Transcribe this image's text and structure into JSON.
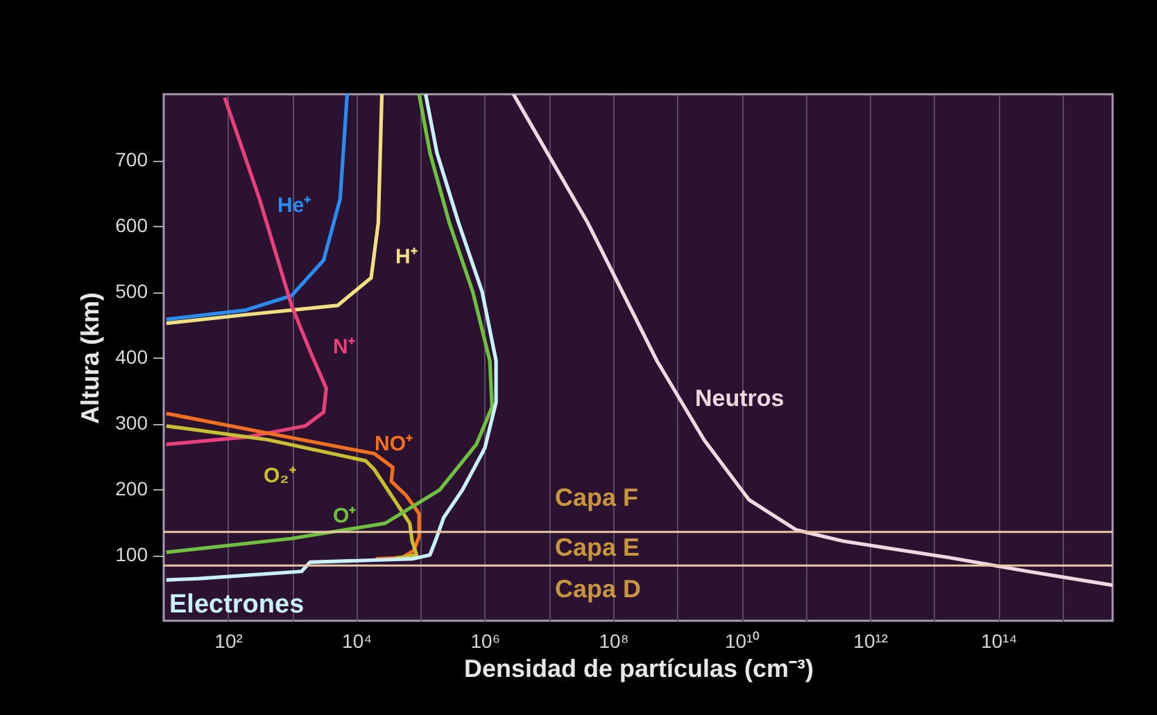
{
  "chart_data": {
    "type": "line",
    "xlabel": "Densidad de partículas (cm⁻³)",
    "ylabel": "Altura (km)",
    "log": "x",
    "grid": "x",
    "xlim": [
      10,
      6000000000000000.0
    ],
    "ylim": [
      0,
      800
    ],
    "xticks": [
      {
        "value": 100,
        "label": "10²"
      },
      {
        "value": 1000,
        "label": null
      },
      {
        "value": 10000.0,
        "label": "10⁴"
      },
      {
        "value": 100000.0,
        "label": null
      },
      {
        "value": 1000000.0,
        "label": "10⁶"
      },
      {
        "value": 10000000.0,
        "label": null
      },
      {
        "value": 100000000.0,
        "label": "10⁸"
      },
      {
        "value": 1000000000.0,
        "label": null
      },
      {
        "value": 10000000000.0,
        "label": "10¹⁰"
      },
      {
        "value": 100000000000.0,
        "label": null
      },
      {
        "value": 1000000000000.0,
        "label": "10¹²"
      },
      {
        "value": 10000000000000.0,
        "label": null
      },
      {
        "value": 100000000000000.0,
        "label": "10¹⁴"
      },
      {
        "value": 1000000000000000.0,
        "label": null
      }
    ],
    "yticks": [
      100,
      200,
      300,
      400,
      500,
      600,
      700
    ],
    "series": [
      {
        "name": "He⁺",
        "color": "#2a8cf0",
        "x": [
          7200,
          5600,
          3100,
          980,
          190,
          11
        ],
        "values": [
          800,
          641,
          548,
          494,
          472,
          458
        ]
      },
      {
        "name": "H⁺",
        "color": "#f0e080",
        "x": [
          25000,
          22000,
          17000,
          5100,
          190,
          11
        ],
        "values": [
          800,
          605,
          521,
          479,
          465,
          452
        ]
      },
      {
        "name": "N⁺",
        "color": "#e8407a",
        "x": [
          89,
          310,
          980,
          1900,
          3400,
          3100,
          1600,
          190,
          11
        ],
        "values": [
          795,
          641,
          479,
          410,
          353,
          317,
          296,
          279,
          268
        ]
      },
      {
        "name": "NO⁺",
        "color": "#f07020",
        "x": [
          11,
          420,
          19000,
          37000,
          35000,
          59000,
          95000,
          95000,
          79000,
          52000,
          20000
        ],
        "values": [
          315,
          285,
          254,
          233,
          212,
          191,
          163,
          128,
          107,
          96,
          94
        ]
      },
      {
        "name": "O₂⁺",
        "color": "#c8c030",
        "x": [
          11,
          420,
          14000,
          19000,
          68000,
          74000,
          87000,
          40000
        ],
        "values": [
          296,
          275,
          243,
          230,
          148,
          121,
          100,
          95
        ]
      },
      {
        "name": "O⁺",
        "color": "#70c040",
        "x": [
          11,
          980,
          28000,
          200000,
          740000,
          1300000,
          1200000,
          650000,
          280000,
          140000,
          95000
        ],
        "values": [
          104,
          125,
          148,
          199,
          268,
          325,
          395,
          500,
          605,
          711,
          800
        ]
      },
      {
        "name": "Electrones",
        "color": "#c8f0ff",
        "x": [
          120000,
          180000,
          390000,
          910000,
          1500000,
          1500000,
          1000000,
          450000,
          230000,
          170000,
          140000,
          74000,
          1900,
          1400,
          35,
          11
        ],
        "values": [
          800,
          711,
          605,
          500,
          395,
          332,
          262,
          199,
          157,
          121,
          100,
          94,
          89,
          75,
          64,
          62
        ]
      },
      {
        "name": "Neutros",
        "color": "#f0d8e0",
        "x": [
          2800000,
          40000000.0,
          480000000.0,
          2600000000.0,
          13000000000.0,
          71000000000.0,
          380000000000.0,
          17000000000000.0,
          290000000000000.0,
          6000000000000000.0
        ],
        "values": [
          800,
          605,
          395,
          275,
          184,
          138,
          121,
          96,
          75,
          54
        ]
      }
    ],
    "ref_lines": [
      {
        "axis": "y",
        "value": 135,
        "color": "#e8c8a0"
      },
      {
        "axis": "y",
        "value": 84,
        "color": "#e8c8a0"
      }
    ],
    "annotations": [
      "Capa F",
      "Capa E",
      "Capa D"
    ]
  }
}
